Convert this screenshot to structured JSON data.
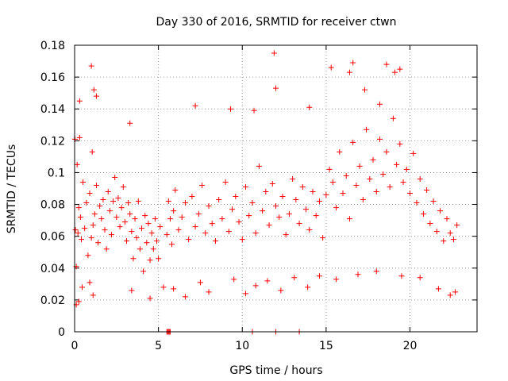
{
  "chart_data": {
    "type": "scatter",
    "title": "Day 330 of 2016, SRMTID for receiver ctwn",
    "xlabel": "GPS time / hours",
    "ylabel": "SRMTID / TECUs",
    "xlim": [
      0,
      24
    ],
    "ylim": [
      0,
      0.18
    ],
    "x_ticks": [
      0,
      5,
      10,
      15,
      20
    ],
    "x_tick_labels": [
      "0",
      "5",
      "10",
      "15",
      "20"
    ],
    "y_ticks": [
      0,
      0.02,
      0.04,
      0.06,
      0.08,
      0.1,
      0.12,
      0.14,
      0.16,
      0.18
    ],
    "y_tick_labels": [
      "0",
      "0.02",
      "0.04",
      "0.06",
      "0.08",
      "0.1",
      "0.12",
      "0.14",
      "0.16",
      "0.18"
    ],
    "grid": true,
    "marker": "plus",
    "colors": {
      "series": "#ff0000",
      "grid": "#a0a0a0",
      "axis": "#000000"
    },
    "series": [
      {
        "name": "SRMTID",
        "x": [
          0.02,
          0.05,
          0.1,
          0.15,
          0.2,
          0.25,
          0.3,
          0.35,
          0.4,
          0.5,
          0.6,
          0.7,
          0.8,
          0.9,
          1.0,
          1.05,
          1.1,
          1.15,
          1.2,
          1.3,
          1.4,
          1.5,
          1.6,
          1.7,
          1.8,
          1.9,
          2.0,
          2.1,
          2.2,
          2.3,
          2.4,
          2.5,
          2.6,
          2.7,
          2.8,
          2.9,
          3.0,
          3.1,
          3.2,
          3.3,
          3.4,
          3.5,
          3.6,
          3.7,
          3.8,
          3.9,
          4.0,
          4.1,
          4.2,
          4.3,
          4.4,
          4.5,
          4.6,
          4.7,
          4.8,
          4.9,
          5.0,
          5.1,
          5.5,
          5.6,
          5.7,
          5.8,
          5.9,
          6.0,
          6.2,
          6.4,
          6.6,
          6.8,
          7.0,
          7.2,
          7.4,
          7.6,
          7.8,
          8.0,
          8.2,
          8.4,
          8.6,
          8.8,
          9.0,
          9.2,
          9.4,
          9.6,
          9.8,
          10.0,
          10.2,
          10.4,
          10.6,
          10.8,
          11.0,
          11.2,
          11.4,
          11.6,
          11.8,
          12.0,
          12.2,
          12.4,
          12.6,
          12.8,
          13.0,
          13.2,
          13.4,
          13.6,
          13.8,
          14.0,
          14.2,
          14.4,
          14.6,
          14.8,
          15.0,
          15.2,
          15.4,
          15.6,
          15.8,
          16.0,
          16.2,
          16.4,
          16.6,
          16.8,
          17.0,
          17.2,
          17.4,
          17.6,
          17.8,
          18.0,
          18.2,
          18.4,
          18.6,
          18.8,
          19.0,
          19.2,
          19.4,
          19.6,
          19.8,
          20.0,
          20.2,
          20.4,
          20.6,
          20.8,
          21.0,
          21.2,
          21.4,
          21.6,
          21.8,
          22.0,
          22.2,
          22.4,
          22.6,
          22.8,
          0.3,
          1.0,
          1.3,
          3.3,
          7.2,
          9.3,
          10.7,
          11.9,
          12.0,
          14.0,
          15.3,
          16.4,
          16.6,
          17.3,
          18.2,
          18.6,
          19.1,
          19.4,
          0.1,
          0.25,
          0.45,
          0.9,
          1.1,
          3.4,
          4.5,
          5.3,
          5.9,
          6.6,
          7.5,
          8.0,
          9.5,
          10.2,
          10.8,
          11.5,
          12.3,
          13.1,
          13.9,
          14.6,
          15.6,
          16.9,
          18.0,
          19.5,
          20.6,
          21.7,
          22.4,
          22.7
        ],
        "y": [
          0.121,
          0.064,
          0.041,
          0.105,
          0.062,
          0.078,
          0.122,
          0.072,
          0.058,
          0.094,
          0.065,
          0.081,
          0.048,
          0.087,
          0.059,
          0.113,
          0.067,
          0.152,
          0.074,
          0.092,
          0.056,
          0.079,
          0.071,
          0.083,
          0.064,
          0.052,
          0.088,
          0.076,
          0.061,
          0.082,
          0.097,
          0.072,
          0.084,
          0.066,
          0.078,
          0.091,
          0.069,
          0.057,
          0.081,
          0.074,
          0.063,
          0.046,
          0.071,
          0.059,
          0.082,
          0.052,
          0.065,
          0.038,
          0.073,
          0.056,
          0.068,
          0.045,
          0.062,
          0.052,
          0.071,
          0.057,
          0.046,
          0.066,
          0.061,
          0.082,
          0.071,
          0.055,
          0.076,
          0.089,
          0.064,
          0.072,
          0.081,
          0.058,
          0.085,
          0.066,
          0.074,
          0.092,
          0.062,
          0.079,
          0.068,
          0.057,
          0.083,
          0.071,
          0.094,
          0.063,
          0.077,
          0.085,
          0.069,
          0.058,
          0.091,
          0.073,
          0.081,
          0.062,
          0.104,
          0.076,
          0.088,
          0.067,
          0.093,
          0.079,
          0.072,
          0.085,
          0.061,
          0.074,
          0.096,
          0.083,
          0.068,
          0.091,
          0.077,
          0.064,
          0.088,
          0.073,
          0.082,
          0.059,
          0.086,
          0.102,
          0.094,
          0.078,
          0.113,
          0.087,
          0.098,
          0.071,
          0.119,
          0.092,
          0.104,
          0.083,
          0.127,
          0.096,
          0.108,
          0.088,
          0.121,
          0.099,
          0.113,
          0.091,
          0.134,
          0.105,
          0.118,
          0.094,
          0.102,
          0.087,
          0.112,
          0.081,
          0.096,
          0.074,
          0.089,
          0.068,
          0.082,
          0.063,
          0.076,
          0.057,
          0.071,
          0.062,
          0.058,
          0.067,
          0.145,
          0.167,
          0.148,
          0.131,
          0.142,
          0.14,
          0.139,
          0.175,
          0.153,
          0.141,
          0.166,
          0.163,
          0.169,
          0.152,
          0.143,
          0.168,
          0.163,
          0.165,
          0.017,
          0.019,
          0.028,
          0.031,
          0.023,
          0.026,
          0.021,
          0.028,
          0.027,
          0.022,
          0.031,
          0.025,
          0.033,
          0.024,
          0.029,
          0.032,
          0.026,
          0.034,
          0.028,
          0.035,
          0.033,
          0.036,
          0.038,
          0.035,
          0.034,
          0.027,
          0.023,
          0.025
        ]
      }
    ],
    "zero_points": {
      "x": [
        5.5,
        5.55,
        5.6,
        5.65,
        5.7,
        10.6,
        12.0,
        13.4
      ],
      "y": [
        0,
        0,
        0,
        0,
        0,
        0,
        0,
        0
      ]
    }
  }
}
